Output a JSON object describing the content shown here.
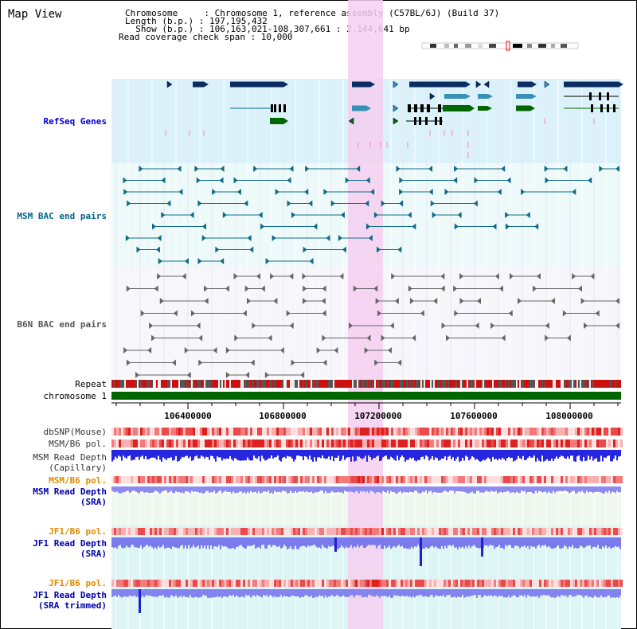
{
  "title": "Map View",
  "info": {
    "chromosome": "Chromosome     : Chromosome 1, reference assembly (C57BL/6J) (Build 37)",
    "length": "Length (b.p.) : 197,195,432",
    "show": "  Show (b.p.) : 106,163,021-108,307,661 : 2,144,641 bp",
    "span": "Read coverage check span : 10,000"
  },
  "tracks": {
    "refseq": "RefSeq Genes",
    "msm_bac": "MSM BAC end pairs",
    "b6n_bac": "B6N BAC end pairs",
    "repeat": "Repeat",
    "chromosome": "chromosome 1",
    "dbsnp": "dbSNP(Mouse)",
    "msm_b6_pol": "MSM/B6 pol.",
    "msm_depth_cap_1": "MSM Read Depth",
    "msm_depth_cap_2": "(Capillary)",
    "msm_b6_pol2": "MSM/B6 pol.",
    "msm_depth_sra_1": "MSM Read Depth",
    "msm_depth_sra_2": "(SRA)",
    "jf1_b6_pol": "JF1/B6 pol.",
    "jf1_depth_sra_1": "JF1 Read Depth",
    "jf1_depth_sra_2": "(SRA)",
    "jf1_b6_pol2": "JF1/B6 pol.",
    "jf1_depth_trim_1": "JF1 Read Depth",
    "jf1_depth_trim_2": "(SRA trimmed)"
  },
  "axis": {
    "ticks": [
      "106400000",
      "106800000",
      "107200000",
      "107600000",
      "108000000"
    ]
  },
  "colors": {
    "refseq_label": "#0000cc",
    "msm_label": "#006688",
    "b6n_label": "#333333",
    "pol_label_orange": "#e08a00",
    "depth_label": "#0000aa",
    "highlight": "#f7d8f4",
    "chromosome_bar": "#006600"
  }
}
